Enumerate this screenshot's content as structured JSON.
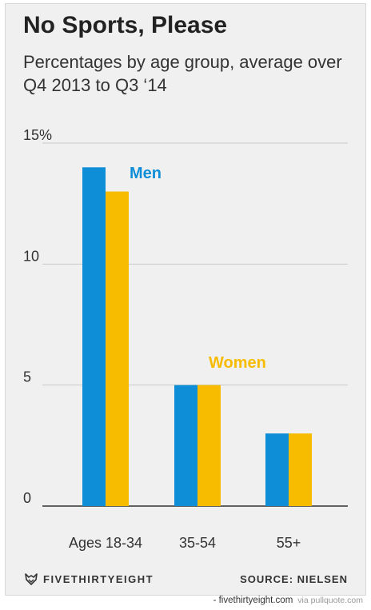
{
  "header": {
    "title": "No Sports, Please",
    "subtitle": "Percentages by age group, average over Q4 2013 to Q3 ‘14"
  },
  "chart_data": {
    "type": "bar",
    "categories": [
      "Ages 18-34",
      "35-54",
      "55+"
    ],
    "series": [
      {
        "name": "Men",
        "color": "#0f8ed8",
        "values": [
          14,
          5,
          3
        ]
      },
      {
        "name": "Women",
        "color": "#f7bb00",
        "values": [
          13,
          5,
          3
        ]
      }
    ],
    "yticks": [
      {
        "value": 0,
        "label": "0"
      },
      {
        "value": 5,
        "label": "5"
      },
      {
        "value": 10,
        "label": "10"
      },
      {
        "value": 15,
        "label": "15%"
      }
    ],
    "ylim": [
      0,
      15
    ],
    "grid": true,
    "legend": "inline labels"
  },
  "footer": {
    "brand": "FIVETHIRTYEIGHT",
    "brand_icon": "fox-logo-icon",
    "source": "SOURCE: NIELSEN"
  },
  "credit": {
    "site": "- fivethirtyeight.com",
    "via": "via pullquote.com"
  }
}
